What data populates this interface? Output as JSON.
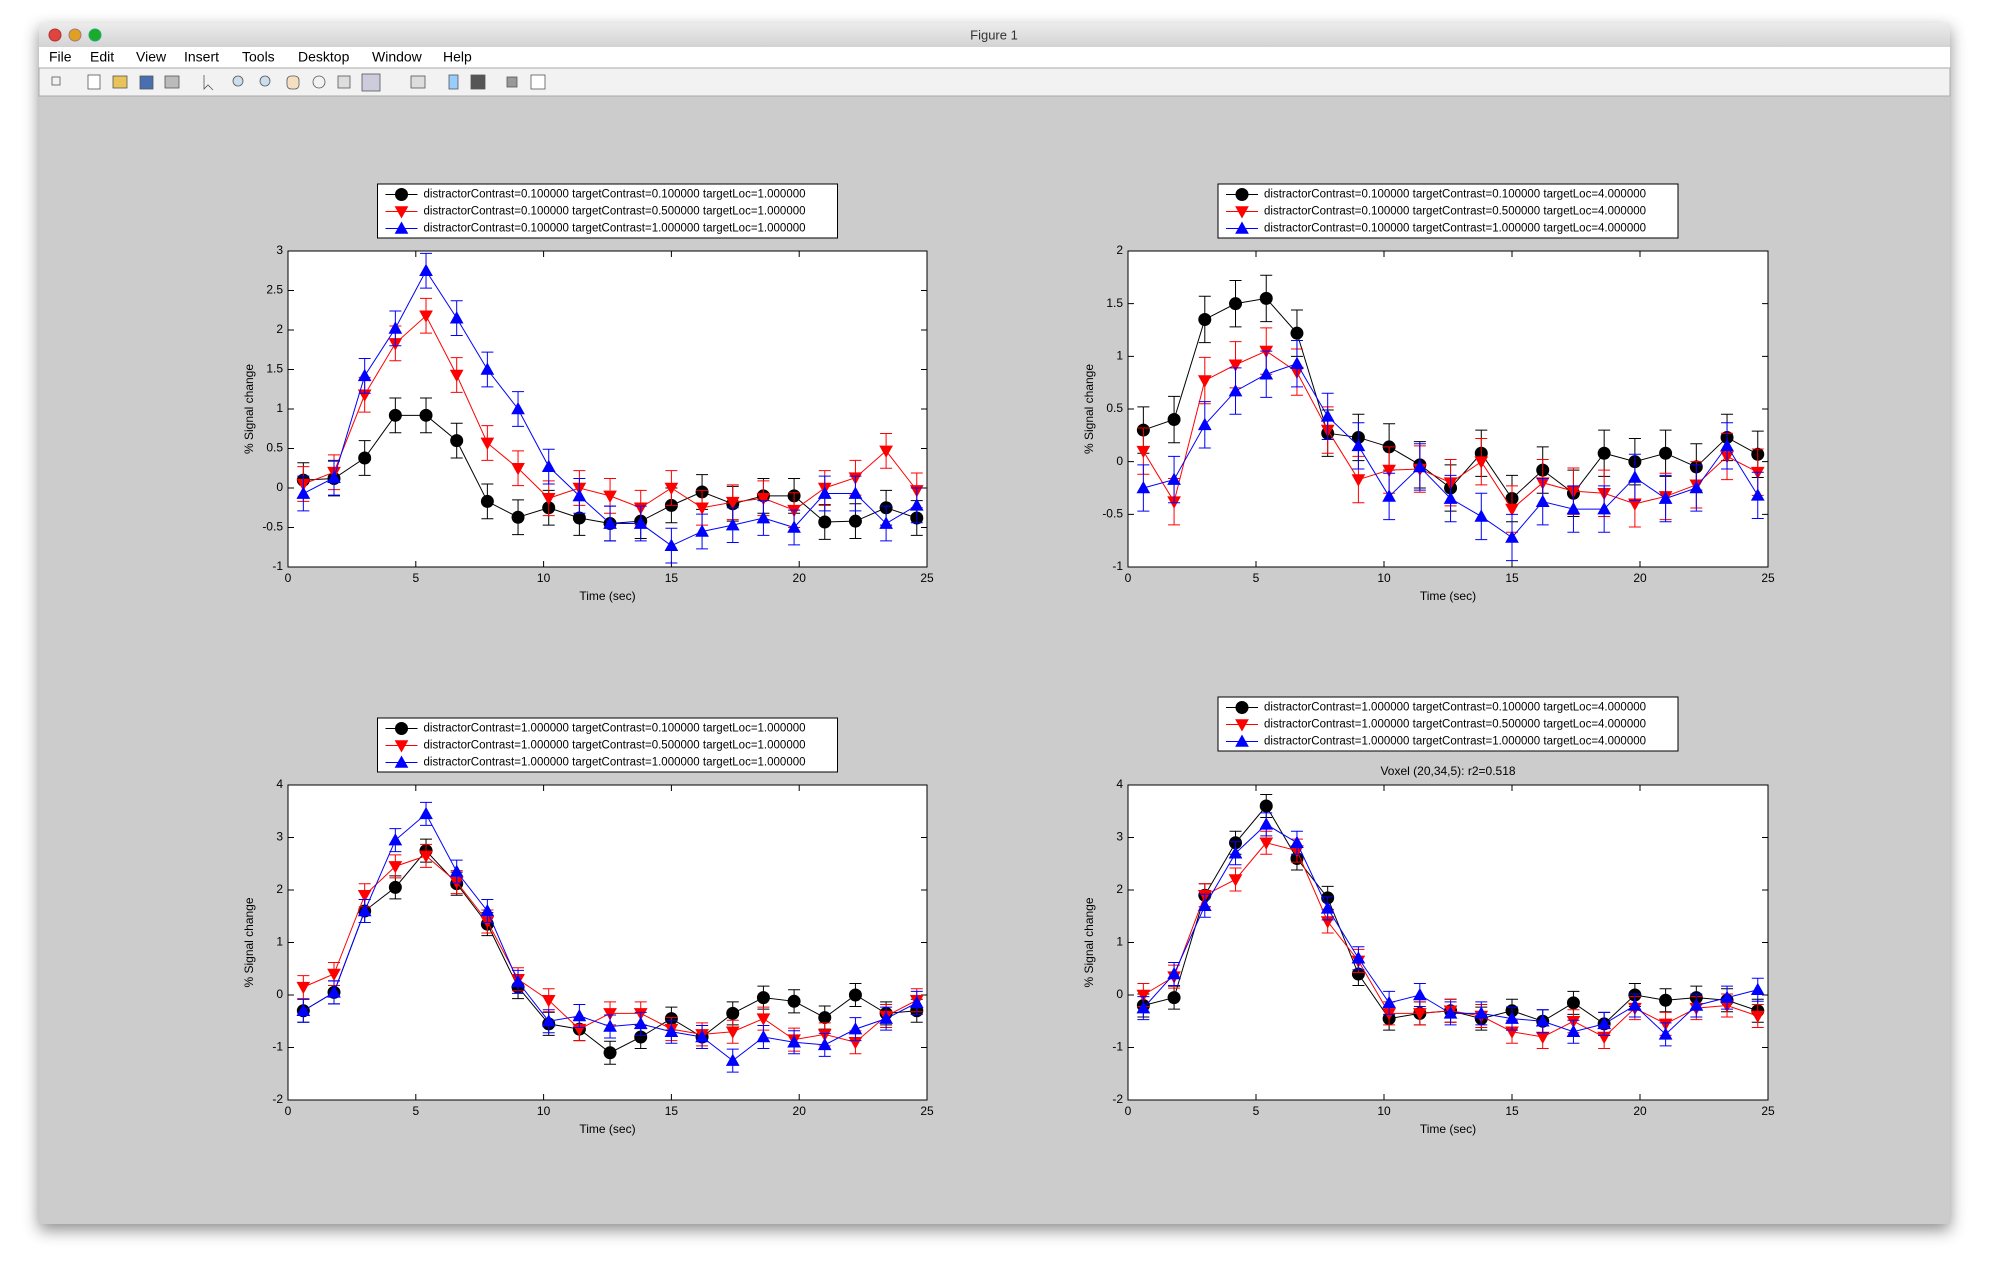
{
  "window": {
    "title": "Figure 1",
    "menu": [
      "File",
      "Edit",
      "View",
      "Insert",
      "Tools",
      "Desktop",
      "Window",
      "Help"
    ]
  },
  "chart_data": [
    {
      "type": "line",
      "xlabel": "Time (sec)",
      "ylabel": "% Signal change",
      "legend": "top",
      "xlim": [
        0,
        25
      ],
      "xticks": [
        0,
        5,
        10,
        15,
        20,
        25
      ],
      "ylim": [
        -1,
        3
      ],
      "yticks": [
        -1,
        -0.5,
        0,
        0.5,
        1,
        1.5,
        2,
        2.5,
        3
      ],
      "grid": false,
      "x": [
        0.6,
        1.8,
        3.0,
        4.2,
        5.4,
        6.6,
        7.8,
        9.0,
        10.2,
        11.4,
        12.6,
        13.8,
        15.0,
        16.2,
        17.4,
        18.6,
        19.8,
        21.0,
        22.2,
        23.4,
        24.6
      ],
      "series": [
        {
          "name": "distractorContrast=0.100000 targetContrast=0.100000 targetLoc=1.000000",
          "color": "#000000",
          "marker": "o",
          "values": [
            0.1,
            0.12,
            0.38,
            0.92,
            0.92,
            0.6,
            -0.17,
            -0.37,
            -0.25,
            -0.38,
            -0.45,
            -0.42,
            -0.22,
            -0.05,
            -0.2,
            -0.1,
            -0.1,
            -0.43,
            -0.42,
            -0.25,
            -0.38
          ],
          "errors": [
            0.22,
            0.22,
            0.22,
            0.22,
            0.22,
            0.22,
            0.22,
            0.22,
            0.22,
            0.22,
            0.22,
            0.22,
            0.22,
            0.22,
            0.22,
            0.22,
            0.22,
            0.22,
            0.22,
            0.22,
            0.22
          ]
        },
        {
          "name": "distractorContrast=0.100000 targetContrast=0.500000 targetLoc=1.000000",
          "color": "#ff0000",
          "marker": "v",
          "values": [
            0.05,
            0.2,
            1.18,
            1.83,
            2.18,
            1.43,
            0.57,
            0.25,
            -0.13,
            0.0,
            -0.1,
            -0.25,
            0.0,
            -0.25,
            -0.18,
            -0.13,
            -0.28,
            0.0,
            0.13,
            0.47,
            -0.03
          ],
          "errors": [
            0.22,
            0.22,
            0.22,
            0.22,
            0.22,
            0.22,
            0.22,
            0.22,
            0.22,
            0.22,
            0.22,
            0.22,
            0.22,
            0.22,
            0.22,
            0.22,
            0.22,
            0.22,
            0.22,
            0.22,
            0.22
          ]
        },
        {
          "name": "distractorContrast=0.100000 targetContrast=1.000000 targetLoc=1.000000",
          "color": "#0000ff",
          "marker": "^",
          "values": [
            -0.07,
            0.13,
            1.42,
            2.02,
            2.75,
            2.15,
            1.5,
            1.0,
            0.27,
            -0.1,
            -0.45,
            -0.45,
            -0.73,
            -0.55,
            -0.47,
            -0.38,
            -0.5,
            -0.07,
            -0.07,
            -0.45,
            -0.22
          ],
          "errors": [
            0.22,
            0.22,
            0.22,
            0.22,
            0.22,
            0.22,
            0.22,
            0.22,
            0.22,
            0.22,
            0.22,
            0.22,
            0.22,
            0.22,
            0.22,
            0.22,
            0.22,
            0.22,
            0.22,
            0.22,
            0.22
          ]
        }
      ]
    },
    {
      "type": "line",
      "xlabel": "Time (sec)",
      "ylabel": "% Signal change",
      "legend": "top",
      "xlim": [
        0,
        25
      ],
      "xticks": [
        0,
        5,
        10,
        15,
        20,
        25
      ],
      "ylim": [
        -1,
        2
      ],
      "yticks": [
        -1,
        -0.5,
        0,
        0.5,
        1,
        1.5,
        2
      ],
      "grid": false,
      "x": [
        0.6,
        1.8,
        3.0,
        4.2,
        5.4,
        6.6,
        7.8,
        9.0,
        10.2,
        11.4,
        12.6,
        13.8,
        15.0,
        16.2,
        17.4,
        18.6,
        19.8,
        21.0,
        22.2,
        23.4,
        24.6
      ],
      "series": [
        {
          "name": "distractorContrast=0.100000 targetContrast=0.100000 targetLoc=4.000000",
          "color": "#000000",
          "marker": "o",
          "values": [
            0.3,
            0.4,
            1.35,
            1.5,
            1.55,
            1.22,
            0.27,
            0.23,
            0.14,
            -0.03,
            -0.25,
            0.08,
            -0.35,
            -0.08,
            -0.3,
            0.08,
            0.0,
            0.08,
            -0.05,
            0.23,
            0.07
          ],
          "errors": [
            0.22,
            0.22,
            0.22,
            0.22,
            0.22,
            0.22,
            0.22,
            0.22,
            0.22,
            0.22,
            0.22,
            0.22,
            0.22,
            0.22,
            0.22,
            0.22,
            0.22,
            0.22,
            0.22,
            0.22,
            0.22
          ]
        },
        {
          "name": "distractorContrast=0.100000 targetContrast=0.500000 targetLoc=4.000000",
          "color": "#ff0000",
          "marker": "v",
          "values": [
            0.1,
            -0.38,
            0.77,
            0.92,
            1.05,
            0.85,
            0.3,
            -0.17,
            -0.08,
            -0.07,
            -0.2,
            0.0,
            -0.45,
            -0.2,
            -0.28,
            -0.3,
            -0.4,
            -0.33,
            -0.22,
            0.05,
            -0.1
          ],
          "errors": [
            0.22,
            0.22,
            0.22,
            0.22,
            0.22,
            0.22,
            0.22,
            0.22,
            0.22,
            0.22,
            0.22,
            0.22,
            0.22,
            0.22,
            0.22,
            0.22,
            0.22,
            0.22,
            0.22,
            0.22,
            0.22
          ]
        },
        {
          "name": "distractorContrast=0.100000 targetContrast=1.000000 targetLoc=4.000000",
          "color": "#0000ff",
          "marker": "^",
          "values": [
            -0.25,
            -0.17,
            0.35,
            0.67,
            0.83,
            0.93,
            0.43,
            0.15,
            -0.33,
            -0.05,
            -0.35,
            -0.52,
            -0.72,
            -0.38,
            -0.45,
            -0.45,
            -0.15,
            -0.35,
            -0.25,
            0.15,
            -0.32
          ],
          "errors": [
            0.22,
            0.22,
            0.22,
            0.22,
            0.22,
            0.22,
            0.22,
            0.22,
            0.22,
            0.22,
            0.22,
            0.22,
            0.22,
            0.22,
            0.22,
            0.22,
            0.22,
            0.22,
            0.22,
            0.22,
            0.22
          ]
        }
      ]
    },
    {
      "type": "line",
      "xlabel": "Time (sec)",
      "ylabel": "% Signal change",
      "legend": "top",
      "xlim": [
        0,
        25
      ],
      "xticks": [
        0,
        5,
        10,
        15,
        20,
        25
      ],
      "ylim": [
        -2,
        4
      ],
      "yticks": [
        -2,
        -1,
        0,
        1,
        2,
        3,
        4
      ],
      "grid": false,
      "x": [
        0.6,
        1.8,
        3.0,
        4.2,
        5.4,
        6.6,
        7.8,
        9.0,
        10.2,
        11.4,
        12.6,
        13.8,
        15.0,
        16.2,
        17.4,
        18.6,
        19.8,
        21.0,
        22.2,
        23.4,
        24.6
      ],
      "series": [
        {
          "name": "distractorContrast=1.000000 targetContrast=0.100000 targetLoc=1.000000",
          "color": "#000000",
          "marker": "o",
          "values": [
            -0.3,
            0.05,
            1.6,
            2.05,
            2.75,
            2.12,
            1.35,
            0.15,
            -0.55,
            -0.65,
            -1.1,
            -0.8,
            -0.45,
            -0.8,
            -0.35,
            -0.05,
            -0.12,
            -0.43,
            0.0,
            -0.35,
            -0.3
          ],
          "errors": [
            0.22,
            0.22,
            0.22,
            0.22,
            0.22,
            0.22,
            0.22,
            0.22,
            0.22,
            0.22,
            0.22,
            0.22,
            0.22,
            0.22,
            0.22,
            0.22,
            0.22,
            0.22,
            0.22,
            0.22,
            0.22
          ]
        },
        {
          "name": "distractorContrast=1.000000 targetContrast=0.500000 targetLoc=1.000000",
          "color": "#ff0000",
          "marker": "v",
          "values": [
            0.15,
            0.4,
            1.9,
            2.45,
            2.65,
            2.15,
            1.4,
            0.3,
            -0.1,
            -0.65,
            -0.35,
            -0.35,
            -0.65,
            -0.75,
            -0.7,
            -0.45,
            -0.85,
            -0.75,
            -0.9,
            -0.4,
            -0.1
          ],
          "errors": [
            0.22,
            0.22,
            0.22,
            0.22,
            0.22,
            0.22,
            0.22,
            0.22,
            0.22,
            0.22,
            0.22,
            0.22,
            0.22,
            0.22,
            0.22,
            0.22,
            0.22,
            0.22,
            0.22,
            0.22,
            0.22
          ]
        },
        {
          "name": "distractorContrast=1.000000 targetContrast=1.000000 targetLoc=1.000000",
          "color": "#0000ff",
          "marker": "^",
          "values": [
            -0.3,
            0.05,
            1.6,
            2.95,
            3.45,
            2.35,
            1.6,
            0.25,
            -0.5,
            -0.4,
            -0.6,
            -0.55,
            -0.7,
            -0.8,
            -1.25,
            -0.8,
            -0.9,
            -0.95,
            -0.65,
            -0.45,
            -0.15
          ],
          "errors": [
            0.22,
            0.22,
            0.22,
            0.22,
            0.22,
            0.22,
            0.22,
            0.22,
            0.22,
            0.22,
            0.22,
            0.22,
            0.22,
            0.22,
            0.22,
            0.22,
            0.22,
            0.22,
            0.22,
            0.22,
            0.22
          ]
        }
      ]
    },
    {
      "type": "line",
      "title": "Voxel (20,34,5): r2=0.518",
      "xlabel": "Time (sec)",
      "ylabel": "% Signal change",
      "legend": "top",
      "xlim": [
        0,
        25
      ],
      "xticks": [
        0,
        5,
        10,
        15,
        20,
        25
      ],
      "ylim": [
        -2,
        4
      ],
      "yticks": [
        -2,
        -1,
        0,
        1,
        2,
        3,
        4
      ],
      "grid": false,
      "x": [
        0.6,
        1.8,
        3.0,
        4.2,
        5.4,
        6.6,
        7.8,
        9.0,
        10.2,
        11.4,
        12.6,
        13.8,
        15.0,
        16.2,
        17.4,
        18.6,
        19.8,
        21.0,
        22.2,
        23.4,
        24.6
      ],
      "series": [
        {
          "name": "distractorContrast=1.000000 targetContrast=0.100000 targetLoc=4.000000",
          "color": "#000000",
          "marker": "o",
          "values": [
            -0.2,
            -0.05,
            1.9,
            2.9,
            3.6,
            2.6,
            1.85,
            0.4,
            -0.45,
            -0.35,
            -0.3,
            -0.45,
            -0.3,
            -0.5,
            -0.15,
            -0.55,
            0.0,
            -0.1,
            -0.05,
            -0.1,
            -0.3
          ],
          "errors": [
            0.22,
            0.22,
            0.22,
            0.22,
            0.22,
            0.22,
            0.22,
            0.22,
            0.22,
            0.22,
            0.22,
            0.22,
            0.22,
            0.22,
            0.22,
            0.22,
            0.22,
            0.22,
            0.22,
            0.22,
            0.22
          ]
        },
        {
          "name": "distractorContrast=1.000000 targetContrast=0.500000 targetLoc=4.000000",
          "color": "#ff0000",
          "marker": "v",
          "values": [
            0.0,
            0.35,
            1.9,
            2.2,
            2.9,
            2.75,
            1.4,
            0.65,
            -0.35,
            -0.35,
            -0.3,
            -0.4,
            -0.7,
            -0.8,
            -0.5,
            -0.8,
            -0.25,
            -0.55,
            -0.25,
            -0.2,
            -0.4
          ],
          "errors": [
            0.22,
            0.22,
            0.22,
            0.22,
            0.22,
            0.22,
            0.22,
            0.22,
            0.22,
            0.22,
            0.22,
            0.22,
            0.22,
            0.22,
            0.22,
            0.22,
            0.22,
            0.22,
            0.22,
            0.22,
            0.22
          ]
        },
        {
          "name": "distractorContrast=1.000000 targetContrast=1.000000 targetLoc=4.000000",
          "color": "#0000ff",
          "marker": "^",
          "values": [
            -0.25,
            0.4,
            1.7,
            2.7,
            3.25,
            2.9,
            1.65,
            0.7,
            -0.15,
            0.0,
            -0.35,
            -0.35,
            -0.45,
            -0.5,
            -0.7,
            -0.55,
            -0.2,
            -0.75,
            -0.2,
            -0.05,
            0.1
          ],
          "errors": [
            0.22,
            0.22,
            0.22,
            0.22,
            0.22,
            0.22,
            0.22,
            0.22,
            0.22,
            0.22,
            0.22,
            0.22,
            0.22,
            0.22,
            0.22,
            0.22,
            0.22,
            0.22,
            0.22,
            0.22,
            0.22
          ]
        }
      ]
    }
  ]
}
